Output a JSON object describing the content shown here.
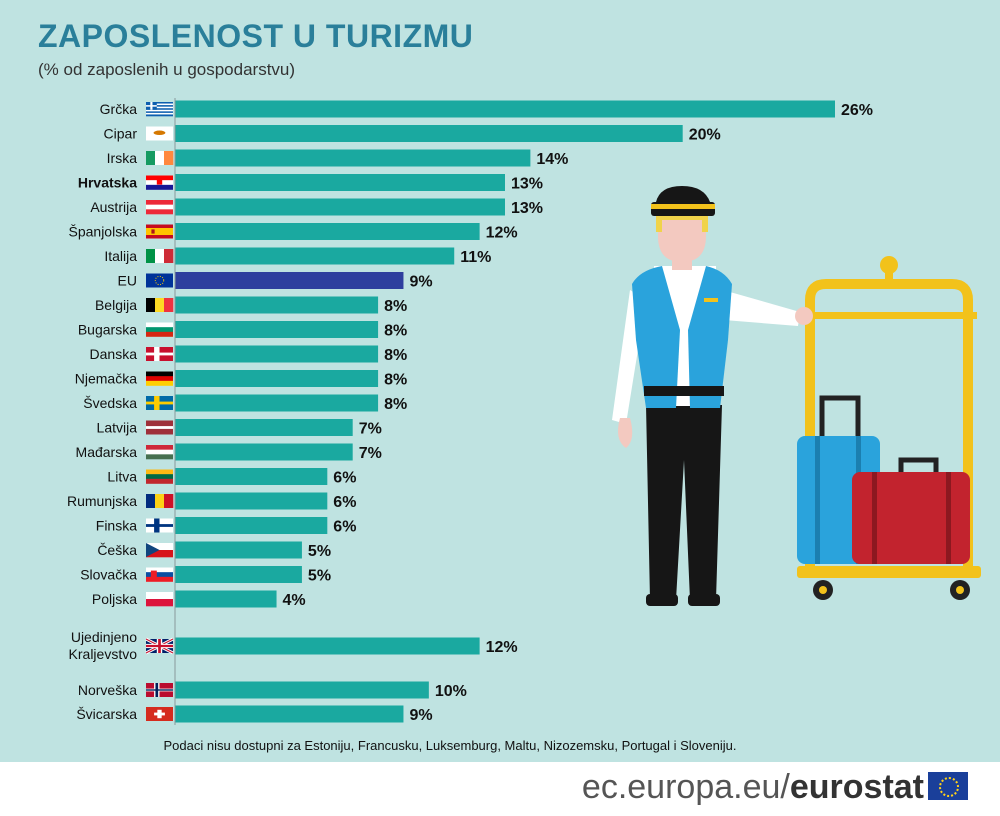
{
  "chart_data": {
    "type": "bar",
    "orientation": "horizontal",
    "title": "ZAPOSLENOST U TURIZMU",
    "subtitle": "(% od zaposlenih u gospodarstvu)",
    "unit": "%",
    "xlim": [
      0,
      26
    ],
    "colors": {
      "bar": "#1aa9a0",
      "eu_bar": "#2e3f9e"
    },
    "categories": [
      {
        "name": "Grčka",
        "value": 26,
        "label": "26%",
        "flag": "greece-flag"
      },
      {
        "name": "Cipar",
        "value": 20,
        "label": "20%",
        "flag": "cyprus-flag"
      },
      {
        "name": "Irska",
        "value": 14,
        "label": "14%",
        "flag": "ireland-flag"
      },
      {
        "name": "Hrvatska",
        "value": 13,
        "label": "13%",
        "flag": "croatia-flag",
        "bold": true
      },
      {
        "name": "Austrija",
        "value": 13,
        "label": "13%",
        "flag": "austria-flag"
      },
      {
        "name": "Španjolska",
        "value": 12,
        "label": "12%",
        "flag": "spain-flag"
      },
      {
        "name": "Italija",
        "value": 11,
        "label": "11%",
        "flag": "italy-flag"
      },
      {
        "name": "EU",
        "value": 9,
        "label": "9%",
        "flag": "eu-flag",
        "highlight": true
      },
      {
        "name": "Belgija",
        "value": 8,
        "label": "8%",
        "flag": "belgium-flag"
      },
      {
        "name": "Bugarska",
        "value": 8,
        "label": "8%",
        "flag": "bulgaria-flag"
      },
      {
        "name": "Danska",
        "value": 8,
        "label": "8%",
        "flag": "denmark-flag"
      },
      {
        "name": "Njemačka",
        "value": 8,
        "label": "8%",
        "flag": "germany-flag"
      },
      {
        "name": "Švedska",
        "value": 8,
        "label": "8%",
        "flag": "sweden-flag"
      },
      {
        "name": "Latvija",
        "value": 7,
        "label": "7%",
        "flag": "latvia-flag"
      },
      {
        "name": "Mađarska",
        "value": 7,
        "label": "7%",
        "flag": "hungary-flag"
      },
      {
        "name": "Litva",
        "value": 6,
        "label": "6%",
        "flag": "lithuania-flag"
      },
      {
        "name": "Rumunjska",
        "value": 6,
        "label": "6%",
        "flag": "romania-flag"
      },
      {
        "name": "Finska",
        "value": 6,
        "label": "6%",
        "flag": "finland-flag"
      },
      {
        "name": "Češka",
        "value": 5,
        "label": "5%",
        "flag": "czechia-flag"
      },
      {
        "name": "Slovačka",
        "value": 5,
        "label": "5%",
        "flag": "slovakia-flag"
      },
      {
        "name": "Poljska",
        "value": 4,
        "label": "4%",
        "flag": "poland-flag"
      },
      {
        "name": [
          "Ujedinjeno",
          "Kraljevstvo"
        ],
        "value": 12,
        "label": "12%",
        "flag": "uk-flag"
      },
      {
        "name": "Norveška",
        "value": 10,
        "label": "10%",
        "flag": "norway-flag"
      },
      {
        "name": "Švicarska",
        "value": 9,
        "label": "9%",
        "flag": "switzerland-flag"
      }
    ]
  },
  "note": "Podaci nisu dostupni za Estoniju, Francusku, Luksemburg, Maltu, Nizozemsku, Portugal i Sloveniju.",
  "footer": {
    "site": "ec.europa.eu/",
    "brand": "eurostat",
    "logo": "eu-flag-logo"
  },
  "illustration": {
    "subject": "porter-with-luggage-cart-illustration"
  }
}
